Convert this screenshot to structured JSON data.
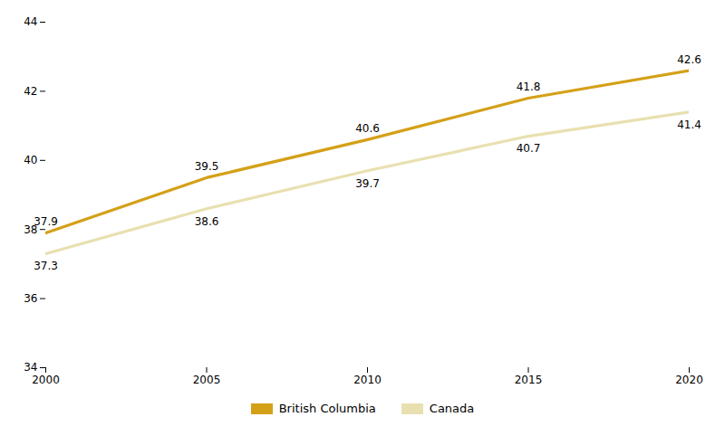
{
  "chart_data": {
    "type": "line",
    "x": [
      2000,
      2005,
      2010,
      2015,
      2020
    ],
    "series": [
      {
        "name": "British Columbia",
        "color": "#D4A017",
        "values": [
          37.9,
          39.5,
          40.6,
          41.8,
          42.6
        ]
      },
      {
        "name": "Canada",
        "color": "#E8E0B0",
        "values": [
          37.3,
          38.6,
          39.7,
          40.7,
          41.4
        ]
      }
    ],
    "xlim": [
      2000,
      2020
    ],
    "xticks": [
      2000,
      2005,
      2010,
      2015,
      2020
    ],
    "ylim": [
      34,
      44
    ],
    "yticks": [
      34,
      36,
      38,
      40,
      42,
      44
    ],
    "data_labels": true,
    "grid": false,
    "legend": "bottom"
  }
}
